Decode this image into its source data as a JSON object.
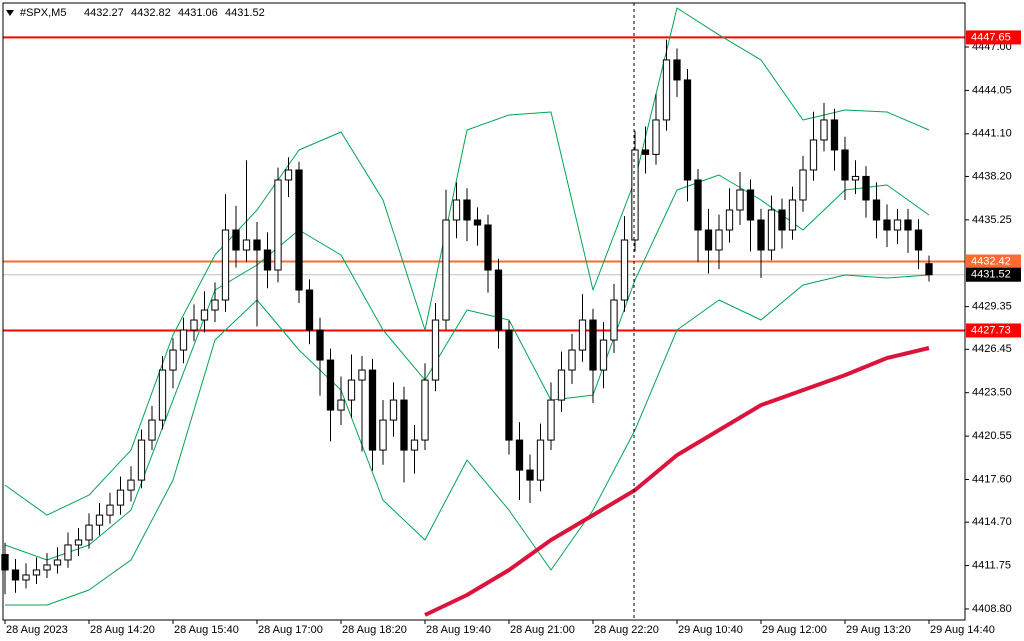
{
  "chart_data": {
    "type": "candlestick",
    "title": "#SPX,M5",
    "up_color": "#ffffff",
    "down_color": "#000000",
    "candles": [
      [
        4412.5,
        4413.3,
        4409.8,
        4411.45
      ],
      [
        4411.45,
        4412.2,
        4409.9,
        4410.77
      ],
      [
        4410.77,
        4411.9,
        4410.2,
        4411.11
      ],
      [
        4411.11,
        4412.3,
        4410.5,
        4411.45
      ],
      [
        4411.45,
        4412.6,
        4410.9,
        4411.79
      ],
      [
        4411.79,
        4413.0,
        4411.2,
        4412.13
      ],
      [
        4412.13,
        4414.0,
        4411.6,
        4413.15
      ],
      [
        4413.15,
        4414.3,
        4412.4,
        4413.49
      ],
      [
        4413.49,
        4415.3,
        4412.9,
        4414.5
      ],
      [
        4414.5,
        4416.0,
        4413.8,
        4415.18
      ],
      [
        4415.18,
        4416.7,
        4414.6,
        4415.86
      ],
      [
        4415.86,
        4417.8,
        4415.2,
        4416.88
      ],
      [
        4416.88,
        4418.5,
        4416.1,
        4417.56
      ],
      [
        4417.56,
        4421.0,
        4417.0,
        4420.28
      ],
      [
        4420.28,
        4422.6,
        4419.6,
        4421.64
      ],
      [
        4421.64,
        4426.0,
        4421.0,
        4425.04
      ],
      [
        4425.04,
        4427.2,
        4423.8,
        4426.4
      ],
      [
        4426.4,
        4428.6,
        4425.5,
        4427.76
      ],
      [
        4427.76,
        4429.5,
        4427.0,
        4428.44
      ],
      [
        4428.44,
        4430.4,
        4427.6,
        4429.12
      ],
      [
        4429.12,
        4431.0,
        4428.3,
        4429.8
      ],
      [
        4429.8,
        4437.0,
        4429.0,
        4434.56
      ],
      [
        4434.56,
        4436.2,
        4432.0,
        4433.2
      ],
      [
        4433.2,
        4439.3,
        4432.4,
        4433.88
      ],
      [
        4433.88,
        4435.1,
        4428.0,
        4433.2
      ],
      [
        4433.2,
        4434.4,
        4430.6,
        4431.84
      ],
      [
        4431.84,
        4438.8,
        4431.0,
        4437.96
      ],
      [
        4437.96,
        4439.5,
        4436.8,
        4438.64
      ],
      [
        4438.64,
        4439.2,
        4429.6,
        4430.48
      ],
      [
        4430.48,
        4431.2,
        4426.8,
        4427.76
      ],
      [
        4427.76,
        4428.6,
        4423.3,
        4425.72
      ],
      [
        4425.72,
        4426.5,
        4420.2,
        4422.32
      ],
      [
        4422.32,
        4424.6,
        4421.3,
        4423.0
      ],
      [
        4423.0,
        4426.1,
        4421.8,
        4424.36
      ],
      [
        4424.36,
        4426.0,
        4419.5,
        4425.04
      ],
      [
        4425.04,
        4425.8,
        4418.2,
        4419.6
      ],
      [
        4419.6,
        4423.0,
        4418.6,
        4421.64
      ],
      [
        4421.64,
        4424.2,
        4420.5,
        4423.0
      ],
      [
        4423.0,
        4423.9,
        4417.4,
        4419.6
      ],
      [
        4419.6,
        4421.3,
        4418.0,
        4420.28
      ],
      [
        4420.28,
        4425.5,
        4419.6,
        4424.36
      ],
      [
        4424.36,
        4429.6,
        4423.6,
        4428.44
      ],
      [
        4428.44,
        4437.3,
        4427.8,
        4435.24
      ],
      [
        4435.24,
        4437.8,
        4434.0,
        4436.6
      ],
      [
        4436.6,
        4437.4,
        4433.8,
        4435.24
      ],
      [
        4435.24,
        4436.1,
        4433.5,
        4434.9
      ],
      [
        4434.9,
        4435.6,
        4430.3,
        4431.84
      ],
      [
        4431.84,
        4432.6,
        4426.5,
        4427.76
      ],
      [
        4427.76,
        4428.4,
        4419.3,
        4420.28
      ],
      [
        4420.28,
        4421.5,
        4416.2,
        4418.24
      ],
      [
        4418.24,
        4419.3,
        4416.0,
        4417.56
      ],
      [
        4417.56,
        4421.4,
        4416.8,
        4420.28
      ],
      [
        4420.28,
        4424.2,
        4419.6,
        4423.0
      ],
      [
        4423.0,
        4426.3,
        4422.2,
        4425.04
      ],
      [
        4425.04,
        4427.5,
        4424.1,
        4426.4
      ],
      [
        4426.4,
        4430.2,
        4425.6,
        4428.44
      ],
      [
        4428.44,
        4429.2,
        4422.8,
        4425.04
      ],
      [
        4425.04,
        4428.3,
        4423.8,
        4427.08
      ],
      [
        4427.08,
        4430.9,
        4426.2,
        4429.8
      ],
      [
        4429.8,
        4435.5,
        4429.0,
        4433.88
      ],
      [
        4433.88,
        4441.3,
        4433.1,
        4440.0
      ],
      [
        4440.0,
        4441.6,
        4438.4,
        4439.7
      ],
      [
        4439.7,
        4443.8,
        4439.0,
        4442.04
      ],
      [
        4442.04,
        4447.5,
        4441.3,
        4446.12
      ],
      [
        4446.12,
        4446.9,
        4443.6,
        4444.76
      ],
      [
        4444.76,
        4445.5,
        4436.5,
        4437.96
      ],
      [
        4437.96,
        4438.7,
        4432.4,
        4434.56
      ],
      [
        4434.56,
        4436.0,
        4431.6,
        4433.2
      ],
      [
        4433.2,
        4435.6,
        4431.9,
        4434.56
      ],
      [
        4434.56,
        4437.4,
        4433.7,
        4435.92
      ],
      [
        4435.92,
        4438.5,
        4434.9,
        4437.28
      ],
      [
        4437.28,
        4438.0,
        4433.1,
        4435.24
      ],
      [
        4435.24,
        4436.0,
        4431.3,
        4433.2
      ],
      [
        4433.2,
        4436.9,
        4432.5,
        4435.92
      ],
      [
        4435.92,
        4436.7,
        4433.3,
        4434.56
      ],
      [
        4434.56,
        4437.5,
        4433.9,
        4436.6
      ],
      [
        4436.6,
        4439.6,
        4435.8,
        4438.64
      ],
      [
        4438.64,
        4442.6,
        4437.9,
        4440.68
      ],
      [
        4440.68,
        4443.2,
        4439.9,
        4442.04
      ],
      [
        4442.04,
        4442.8,
        4438.6,
        4440.0
      ],
      [
        4440.0,
        4440.9,
        4436.6,
        4437.96
      ],
      [
        4437.96,
        4439.3,
        4437.0,
        4438.2
      ],
      [
        4438.2,
        4438.9,
        4435.4,
        4436.6
      ],
      [
        4436.6,
        4437.8,
        4434.0,
        4435.24
      ],
      [
        4435.24,
        4436.3,
        4433.4,
        4434.56
      ],
      [
        4434.56,
        4436.0,
        4433.6,
        4435.24
      ],
      [
        4435.24,
        4436.0,
        4433.0,
        4434.56
      ],
      [
        4434.56,
        4435.3,
        4431.9,
        4433.2
      ],
      [
        4432.27,
        4432.82,
        4431.06,
        4431.52
      ]
    ],
    "lines": [
      {
        "color": "#00a651",
        "width": 1,
        "x": [
          0,
          4,
          8,
          12,
          16,
          20,
          24,
          28,
          32,
          36,
          40,
          44,
          48,
          52,
          56,
          60,
          64,
          68,
          72,
          76,
          80,
          84,
          88
        ],
        "values": [
          4417.22,
          4415.18,
          4416.54,
          4419.6,
          4427.42,
          4432.86,
          4435.92,
          4440.0,
          4441.22,
          4436.6,
          4427.76,
          4441.36,
          4442.38,
          4442.58,
          4430.48,
          4437.96,
          4449.65,
          4447.82,
          4446.12,
          4442.04,
          4442.72,
          4442.58,
          4441.36
        ]
      },
      {
        "color": "#00a651",
        "width": 1,
        "x": [
          0,
          4,
          8,
          12,
          16,
          20,
          24,
          28,
          32,
          36,
          40,
          44,
          48,
          52,
          56,
          60,
          64,
          68,
          72,
          76,
          80,
          84,
          88
        ],
        "values": [
          4413.15,
          4412.13,
          4413.15,
          4415.52,
          4423.0,
          4430.48,
          4432.18,
          4434.56,
          4432.86,
          4427.76,
          4424.36,
          4429.12,
          4428.44,
          4423.0,
          4423.34,
          4431.16,
          4437.28,
          4438.3,
          4436.6,
          4434.56,
          4437.28,
          4437.62,
          4435.58
        ]
      },
      {
        "color": "#00a651",
        "width": 1,
        "x": [
          0,
          4,
          8,
          12,
          16,
          20,
          24,
          28,
          32,
          36,
          40,
          44,
          48,
          52,
          56,
          60,
          64,
          68,
          72,
          76,
          80,
          84,
          88
        ],
        "values": [
          4409.07,
          4409.07,
          4410.09,
          4412.13,
          4417.56,
          4427.08,
          4429.8,
          4426.4,
          4423.68,
          4416.2,
          4413.49,
          4418.92,
          4415.52,
          4411.45,
          4415.52,
          4420.96,
          4427.76,
          4429.8,
          4428.44,
          4430.82,
          4431.5,
          4431.3,
          4431.5
        ]
      },
      {
        "color": "#dc143c",
        "width": 4,
        "x": [
          40,
          44,
          48,
          52,
          56,
          60,
          64,
          68,
          72,
          76,
          80,
          84,
          88
        ],
        "values": [
          4408.39,
          4409.75,
          4411.45,
          4413.49,
          4415.18,
          4416.88,
          4419.26,
          4420.96,
          4422.66,
          4423.68,
          4424.7,
          4425.86,
          4426.54
        ]
      }
    ],
    "levels": [
      {
        "value": 4447.65,
        "color": "#ff0000",
        "label_bg": "#ff0000"
      },
      {
        "value": 4432.42,
        "color": "#ff6a33",
        "label_bg": "#ff6a33"
      },
      {
        "value": 4431.52,
        "color": "#c0c0c0",
        "label_bg": "#000000"
      },
      {
        "value": 4427.73,
        "color": "#ff0000",
        "label_bg": "#ff0000"
      }
    ],
    "xlim": [
      -0.19,
      91.43
    ],
    "ylim": [
      4408.05,
      4449.99
    ],
    "xticks": [
      {
        "value": 0,
        "label": "28 Aug 2023"
      },
      {
        "value": 8,
        "label": "28 Aug 14:20"
      },
      {
        "value": 16,
        "label": "28 Aug 15:40"
      },
      {
        "value": 24,
        "label": "28 Aug 17:00"
      },
      {
        "value": 32,
        "label": "28 Aug 18:20"
      },
      {
        "value": 40,
        "label": "28 Aug 19:40"
      },
      {
        "value": 48,
        "label": "28 Aug 21:00"
      },
      {
        "value": 56,
        "label": "28 Aug 22:20"
      },
      {
        "value": 64,
        "label": "29 Aug 10:40"
      },
      {
        "value": 72,
        "label": "29 Aug 12:00"
      },
      {
        "value": 80,
        "label": "29 Aug 13:20"
      },
      {
        "value": 88,
        "label": "29 Aug 14:40"
      }
    ],
    "yticks": [
      {
        "value": 4447,
        "label": "4447.00"
      },
      4444.05,
      {
        "value": 4441.1,
        "label": "4441.10"
      },
      {
        "value": 4438.2,
        "label": "4438.20"
      },
      4435.25,
      4429.35,
      4426.45,
      {
        "value": 4423.5,
        "label": "4423.50"
      },
      4420.55,
      {
        "value": 4417.6,
        "label": "4417.60"
      },
      {
        "value": 4414.7,
        "label": "4414.70"
      },
      4411.75,
      {
        "value": 4408.8,
        "label": "4408.80"
      }
    ],
    "grid": false
  }
}
